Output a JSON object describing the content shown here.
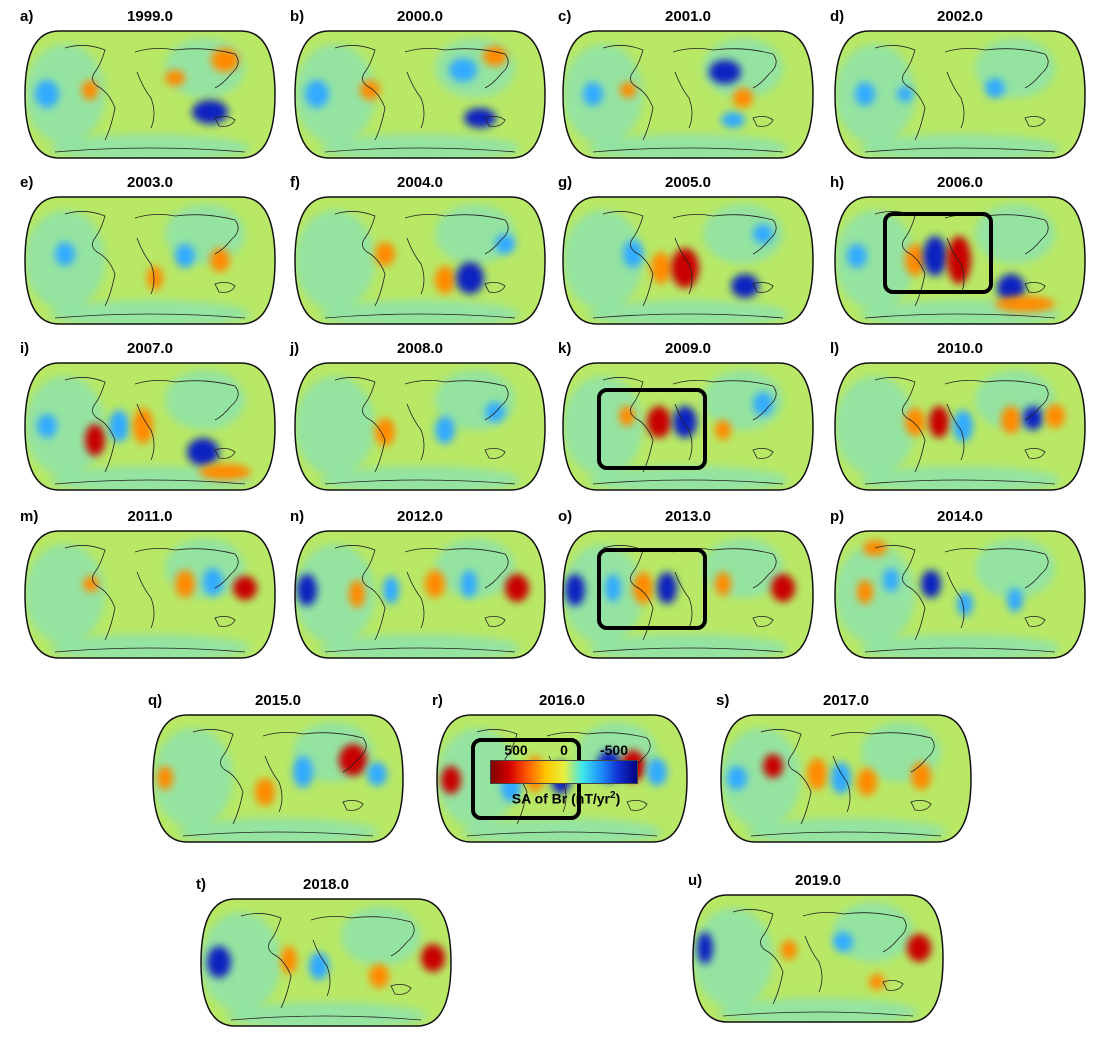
{
  "panels": [
    {
      "letter": "a)",
      "year": "1999.0"
    },
    {
      "letter": "b)",
      "year": "2000.0"
    },
    {
      "letter": "c)",
      "year": "2001.0"
    },
    {
      "letter": "d)",
      "year": "2002.0"
    },
    {
      "letter": "e)",
      "year": "2003.0"
    },
    {
      "letter": "f)",
      "year": "2004.0"
    },
    {
      "letter": "g)",
      "year": "2005.0"
    },
    {
      "letter": "h)",
      "year": "2006.0"
    },
    {
      "letter": "i)",
      "year": "2007.0"
    },
    {
      "letter": "j)",
      "year": "2008.0"
    },
    {
      "letter": "k)",
      "year": "2009.0"
    },
    {
      "letter": "l)",
      "year": "2010.0"
    },
    {
      "letter": "m)",
      "year": "2011.0"
    },
    {
      "letter": "n)",
      "year": "2012.0"
    },
    {
      "letter": "o)",
      "year": "2013.0"
    },
    {
      "letter": "p)",
      "year": "2014.0"
    },
    {
      "letter": "q)",
      "year": "2015.0"
    },
    {
      "letter": "r)",
      "year": "2016.0"
    },
    {
      "letter": "s)",
      "year": "2017.0"
    },
    {
      "letter": "t)",
      "year": "2018.0"
    },
    {
      "letter": "u)",
      "year": "2019.0"
    }
  ],
  "colorbar": {
    "tick_high": "500",
    "tick_zero": "0",
    "tick_low": "-500",
    "label_main": "SA of Br (nT/yr",
    "label_sup": "2",
    "label_end": ")"
  },
  "colors": {
    "ocean_base": "#b8e866",
    "strong_positive": "#c80000",
    "positive": "#ff8a00",
    "negative": "#33aaff",
    "strong_negative": "#1020c0"
  }
}
